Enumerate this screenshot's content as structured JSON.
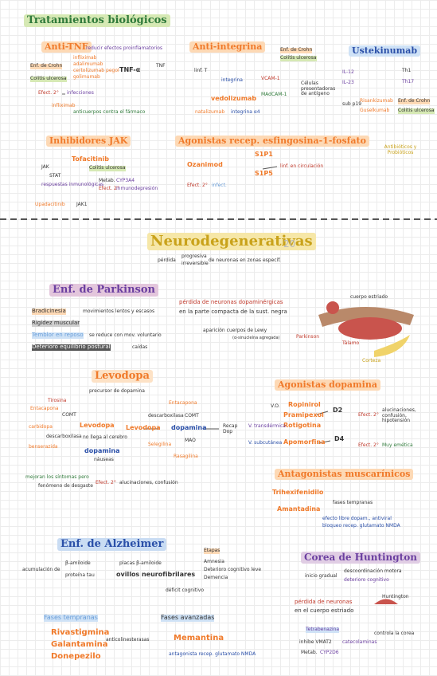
{
  "header": {
    "title": "Tratamientos biológicos"
  },
  "anti_tnf": {
    "title": "Anti-TNF",
    "items": [
      "reducir efectos proinflamatorios",
      "Enf. de Crohn",
      "Colitis ulcerosa",
      "infliximab",
      "adalimumab",
      "certolizumab pegol",
      "golimumab",
      "TNF-α",
      "TNF",
      "Efect. 2°",
      "infecciones",
      "infliximab",
      "anticuerpos contra el fármaco"
    ]
  },
  "anti_integrina": {
    "title": "Anti-integrina",
    "items": [
      "Enf. de Crohn",
      "Colitis ulcerosa",
      "linf. T",
      "integrina",
      "VCAM-1",
      "vedolizumab",
      "MAdCAM-1",
      "natalizumab",
      "integrina α4"
    ]
  },
  "ustekinumab": {
    "title": "Ustekinumab",
    "items": [
      "Células presentadoras de antígeno",
      "IL-12",
      "IL-23",
      "Th1",
      "Th17",
      "sub p19",
      "Risankizumab",
      "Guselkumab",
      "Enf. de Crohn",
      "Colitis ulcerosa"
    ]
  },
  "jak": {
    "title": "Inhibidores JAK",
    "items": [
      "Tofacitinib",
      "JAK",
      "STAT",
      "Colitis ulcerosa",
      "respuestas inmunológicas",
      "Metab.",
      "CYP3A4",
      "Efect. 2°",
      "inmunodepresión",
      "Upadacitinib",
      "JAK1"
    ]
  },
  "s1p": {
    "title": "Agonistas recep. esfingosina-1-fosfato",
    "items": [
      "Ozanimod",
      "S1P1",
      "S1P5",
      "linf. en circulación",
      "Efect. 2°",
      "infect."
    ]
  },
  "antibioticos": {
    "title": "Antibióticos y Probióticos"
  },
  "neuro": {
    "title": "Neurodegenerativas",
    "number": "20",
    "items": [
      "pérdida",
      "progresiva",
      "irreversible",
      "de neuronas en zonas específ."
    ]
  },
  "parkinson": {
    "title": "Enf. de Parkinson",
    "items": [
      "Bradicinesia",
      "movimientos lentos y escasos",
      "Rigidez muscular",
      "Temblor en reposo",
      "se reduce con mov. voluntario",
      "Deterioro equilibrio postural",
      "caídas",
      "pérdida de neuronas dopaminérgicas",
      "en la parte compacta de la sust. negra",
      "aparición cuerpos de Lewy",
      "(α-sinucleína agregada)",
      "cuerpo estriado",
      "Parkinson",
      "Tálamo",
      "Corteza"
    ]
  },
  "levodopa": {
    "title": "Levodopa",
    "items": [
      "precursor de dopamina",
      "Tirosina",
      "Entacapona",
      "COMT",
      "carbidopa",
      "descarboxilasa",
      "benserazida",
      "Levodopa",
      "dopamina",
      "no llega al cerebro",
      "náuseas",
      "Entacapona",
      "COMT",
      "descarboxilasa",
      "Levodopa",
      "dopamina",
      "Recap Dop",
      "Selegilina",
      "MAO",
      "Rasagilina",
      "mejoran los síntomas pero",
      "fenómeno de desgaste",
      "Efect. 2°",
      "alucinaciones, confusión"
    ]
  },
  "agonistas_dopamina": {
    "title": "Agonistas dopamina",
    "items": [
      "V.O.",
      "Ropinirol",
      "Pramipexol",
      "Rotigotina",
      "D2",
      "V. transdérmica",
      "Efect. 2°",
      "alucinaciones, confusión, hipotensión",
      "V. subcutánea",
      "Apomorfina",
      "D4",
      "Efect. 2°",
      "Muy emética"
    ]
  },
  "muscarinicos": {
    "title": "Antagonistas muscarínicos",
    "items": [
      "Trihexifenidilo",
      "Amantadina",
      "fases tempranas",
      "efecto libre dopam., antiviral",
      "bloqueo recep. glutamato NMDA"
    ]
  },
  "alzheimer": {
    "title": "Enf. de Alzheimer",
    "items": [
      "acumulación de",
      "β-amiloide",
      "proteína tau",
      "placas β-amiloide",
      "ovillos neurofibrilares",
      "déficit cognitivo",
      "Etapas",
      "Amnesia",
      "Deterioro cognitivo leve",
      "Demencia",
      "Fases tempranas",
      "Rivastigmina",
      "Galantamina",
      "Donepezilo",
      "anticolinesterasas",
      "Fases avanzadas",
      "Memantina",
      "antagonista recep. glutamato NMDA"
    ]
  },
  "huntington": {
    "title": "Corea de Huntington",
    "items": [
      "inicio gradual",
      "descoordinación motora",
      "deterioro cognitivo",
      "pérdida de neuronas",
      "en el cuerpo estriado",
      "Huntington",
      "Tetrabenazina",
      "controla la corea",
      "inhibe VMAT2",
      "catecolaminas",
      "Metab.",
      "CYP2D6"
    ]
  }
}
